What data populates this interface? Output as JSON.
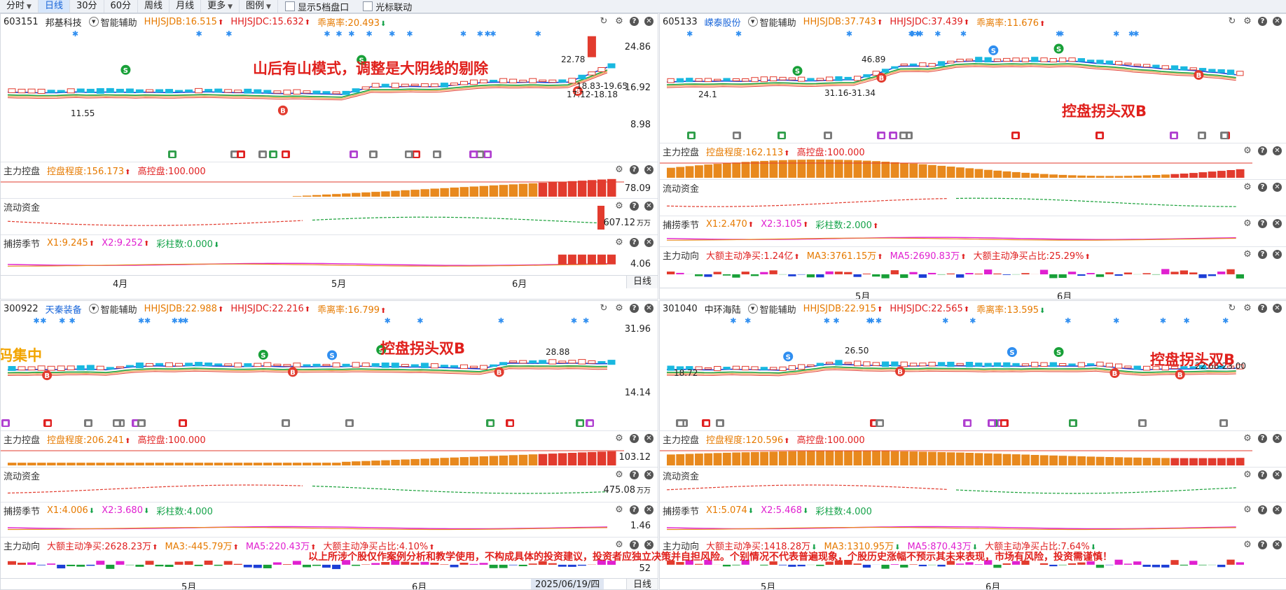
{
  "toolbar": {
    "items": [
      {
        "label": "分时",
        "dropdown": true,
        "active": false
      },
      {
        "label": "日线",
        "dropdown": false,
        "active": true
      },
      {
        "label": "30分",
        "dropdown": false,
        "active": false
      },
      {
        "label": "60分",
        "dropdown": false,
        "active": false
      },
      {
        "label": "周线",
        "dropdown": false,
        "active": false
      },
      {
        "label": "月线",
        "dropdown": false,
        "active": false
      },
      {
        "label": "更多",
        "dropdown": true,
        "active": false
      },
      {
        "label": "图例",
        "dropdown": true,
        "active": false
      }
    ],
    "check1": "显示5档盘口",
    "check2": "光标联动"
  },
  "common": {
    "assist": "智能辅助",
    "main_ctrl": "主力控盘",
    "ctrl_degree_label": "控盘程度:",
    "high_ctrl": "高控盘:100.000",
    "liquid": "流动资金",
    "season": "捕捞季节",
    "flow": "主力动向",
    "day_btn": "日线"
  },
  "panels": [
    {
      "code": "603151",
      "name": "邦基科技",
      "name_blue": false,
      "hj_db": "HHJSJDB:16.515",
      "hj_db_dir": "up",
      "hj_dc": "HHJSJDC:15.632",
      "hj_dc_dir": "up",
      "dev": "乖离率:20.493",
      "dev_dir": "down",
      "y_top": "24.86",
      "y_mid": "16.92",
      "y_low": "8.98",
      "price_labels": [
        "22.78",
        "18.83-19.65",
        "17.12-18.18",
        "11.55"
      ],
      "annotation": "山后有山模式，调整是大阴线的剔除",
      "ctrl_degree": "156.173",
      "ctrl_axis": "78.09",
      "liquid_axis": "607.12",
      "liquid_unit": "万万",
      "x1": "X1:9.245",
      "x1_dir": "up",
      "x2": "X2:9.252",
      "x2_dir": "up",
      "caizhu": "彩柱数:0.000",
      "caizhu_dir": "down",
      "season_axis": "4.06",
      "months": [
        "4月",
        "5月",
        "6月"
      ]
    },
    {
      "code": "605133",
      "name": "嵘泰股份",
      "name_blue": true,
      "hj_db": "HHJSJDB:37.743",
      "hj_db_dir": "up",
      "hj_dc": "HHJSJDC:37.439",
      "hj_dc_dir": "up",
      "dev": "乖离率:11.676",
      "dev_dir": "up",
      "price_labels": [
        "46.89",
        "24.1",
        "31.16-31.34"
      ],
      "annotation": "控盘拐头双B",
      "ctrl_degree": "162.113",
      "x1": "X1:2.470",
      "x1_dir": "up",
      "x2": "X2:3.105",
      "x2_dir": "up",
      "caizhu": "彩柱数:2.000",
      "caizhu_dir": "up",
      "big_buy": "大额主动净买:1.24亿",
      "big_buy_dir": "up",
      "ma3": "MA3:3761.15万",
      "ma3_dir": "up",
      "ma5": "MA5:2690.83万",
      "ma5_dir": "up",
      "ratio": "大额主动净买占比:25.29%",
      "ratio_dir": "up",
      "months": [
        "5月",
        "6月"
      ]
    },
    {
      "code": "300922",
      "name": "天秦装备",
      "name_blue": true,
      "hj_db": "HHJSJDB:22.988",
      "hj_db_dir": "up",
      "hj_dc": "HHJSJDC:22.216",
      "hj_dc_dir": "up",
      "dev": "乖离率:16.799",
      "dev_dir": "up",
      "y_top": "31.96",
      "y_low": "14.14",
      "price_labels": [
        "28.88"
      ],
      "annotation": "控盘拐头双B",
      "side_text": "码集中",
      "ctrl_degree": "206.241",
      "ctrl_axis": "103.12",
      "liquid_axis": "475.08",
      "liquid_unit": "万万",
      "x1": "X1:4.006",
      "x1_dir": "down",
      "x2": "X2:3.680",
      "x2_dir": "down",
      "caizhu": "彩柱数:4.000",
      "caizhu_dir": "",
      "season_axis": "1.46",
      "big_buy": "大额主动净买:2628.23万",
      "big_buy_dir": "up",
      "ma3": "MA3:-445.79万",
      "ma3_dir": "up",
      "ma5": "MA5:220.43万",
      "ma5_dir": "up",
      "ratio": "大额主动净买占比:4.10%",
      "ratio_dir": "up",
      "flow_axis": "52",
      "months": [
        "5月",
        "6月"
      ],
      "date": "2025/06/19/四"
    },
    {
      "code": "301040",
      "name": "中环海陆",
      "name_blue": false,
      "hj_db": "HHJSJDB:22.915",
      "hj_db_dir": "up",
      "hj_dc": "HHJSJDC:22.565",
      "hj_dc_dir": "up",
      "dev": "乖离率:13.595",
      "dev_dir": "down",
      "price_labels": [
        "26.50",
        "18.72",
        "22.68-23.00"
      ],
      "annotation": "控盘拐头双B",
      "ctrl_degree": "120.596",
      "x1": "X1:5.074",
      "x1_dir": "down",
      "x2": "X2:5.468",
      "x2_dir": "down",
      "caizhu": "彩柱数:4.000",
      "caizhu_dir": "",
      "big_buy": "大额主动净买:1418.28万",
      "big_buy_dir": "down",
      "ma3": "MA3:1310.95万",
      "ma3_dir": "down",
      "ma5": "MA5:870.43万",
      "ma5_dir": "down",
      "ratio": "大额主动净买占比:7.64%",
      "ratio_dir": "down",
      "months": [
        "5月",
        "6月"
      ]
    }
  ],
  "disclaimer": "以上所涉个股仅作案例分析和教学使用，不构成具体的投资建议，投资者应独立决策并自担风险。个别情况不代表普遍现象，个股历史涨幅不预示其未来表现，市场有风险，投资需谨慎！",
  "colors": {
    "up": "#e02020",
    "down": "#16a34a",
    "ctrl_bar": "#e8891e",
    "ctrl_bar_hi": "#e23b2e",
    "accent": "#1a66d9"
  }
}
